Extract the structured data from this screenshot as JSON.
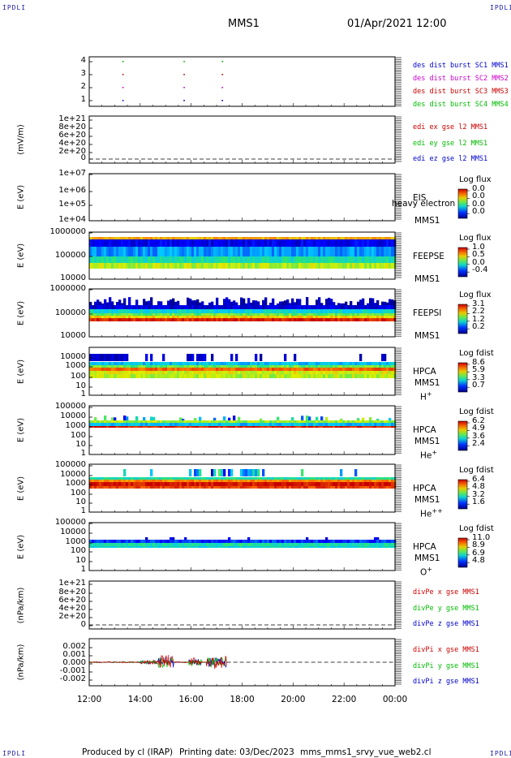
{
  "header": {
    "corner_text": "IPDLI",
    "spacecraft": "MMS1",
    "datetime": "01/Apr/2021 12:00"
  },
  "footer": {
    "produced_by": "Produced by cl (IRAP)",
    "printing_date": "Printing date: 03/Dec/2023",
    "script": "mms_mms1_srvy_vue_web2.cl"
  },
  "x_axis": {
    "ticks": [
      "12:00",
      "14:00",
      "16:00",
      "18:00",
      "20:00",
      "22:00",
      "00:00"
    ]
  },
  "chart_data": [
    {
      "type": "scatter",
      "panel": "des-dist-burst",
      "ylabel": "",
      "yticks": [
        "4",
        "3",
        "2",
        "1"
      ],
      "legend": [
        "des dist burst SC1 MMS1",
        "des dist burst SC2 MMS2",
        "des dist burst SC3 MMS3",
        "des dist burst SC4 MMS4"
      ],
      "legend_colors": [
        "#0000cc",
        "#cc00cc",
        "#cc0000",
        "#00bb00"
      ],
      "x_hours": [
        13.3,
        15.7,
        17.2
      ],
      "levels": [
        4,
        3,
        2,
        1
      ]
    },
    {
      "type": "line",
      "panel": "edi-e-gse",
      "ylabel": "(mV/m)",
      "yticks": [
        "1e+21",
        "8e+20",
        "6e+20",
        "4e+20",
        "2e+20",
        "0"
      ],
      "legend": [
        "edi ex gse l2 MMS1",
        "edi ey gse l2 MMS1",
        "edi ez gse l2 MMS1"
      ],
      "legend_colors": [
        "#cc0000",
        "#00bb00",
        "#0000cc"
      ]
    },
    {
      "type": "heatmap",
      "panel": "eis",
      "ylabel": "E (eV)",
      "yticks": [
        "1e+07",
        "1e+06",
        "1e+05",
        "1e+04"
      ],
      "instrument": "EIS",
      "spacecraft": "MMS1",
      "overlay_text": "heavy electron to",
      "colorbar_title": "Log flux",
      "colorbar_ticks": [
        "0.0",
        "0.0",
        "0.0",
        "0.0"
      ]
    },
    {
      "type": "heatmap",
      "panel": "feepse",
      "ylabel": "E (eV)",
      "yticks": [
        "1000000",
        "100000",
        "10000"
      ],
      "instrument": "FEEPSE",
      "spacecraft": "MMS1",
      "colorbar_title": "Log flux",
      "colorbar_ticks": [
        "1.0",
        "0.5",
        "0.0",
        "-0.4"
      ],
      "data_end_hour": 24
    },
    {
      "type": "heatmap",
      "panel": "feepsi",
      "ylabel": "E (eV)",
      "yticks": [
        "1000000",
        "100000",
        "10000"
      ],
      "instrument": "FEEPSI",
      "spacecraft": "MMS1",
      "colorbar_title": "Log flux",
      "colorbar_ticks": [
        "3.1",
        "2.2",
        "1.2",
        "0.2"
      ],
      "data_end_hour": 24
    },
    {
      "type": "heatmap",
      "panel": "hpca-h",
      "ylabel": "E (eV)",
      "yticks": [
        "10000",
        "1000",
        "100",
        "10",
        "1"
      ],
      "instrument": "HPCA",
      "spacecraft": "MMS1",
      "species": "H",
      "species_sup": "+",
      "colorbar_title": "Log fdist",
      "colorbar_ticks": [
        "8.6",
        "5.9",
        "3.3",
        "0.7"
      ],
      "data_end_hour": 24
    },
    {
      "type": "heatmap",
      "panel": "hpca-he",
      "ylabel": "E (eV)",
      "yticks": [
        "100000",
        "10000",
        "1000",
        "100",
        "10",
        "1"
      ],
      "instrument": "HPCA",
      "spacecraft": "MMS1",
      "species": "He",
      "species_sup": "+",
      "colorbar_title": "Log fdist",
      "colorbar_ticks": [
        "6.2",
        "4.9",
        "3.6",
        "2.4"
      ],
      "data_end_hour": 24
    },
    {
      "type": "heatmap",
      "panel": "hpca-hepp",
      "ylabel": "E (eV)",
      "yticks": [
        "100000",
        "10000",
        "1000",
        "100",
        "10",
        "1"
      ],
      "instrument": "HPCA",
      "spacecraft": "MMS1",
      "species": "He",
      "species_sup": "++",
      "colorbar_title": "Log fdist",
      "colorbar_ticks": [
        "6.4",
        "4.8",
        "3.2",
        "1.6"
      ],
      "data_end_hour": 24
    },
    {
      "type": "heatmap",
      "panel": "hpca-o",
      "ylabel": "E (eV)",
      "yticks": [
        "100000",
        "10000",
        "1000",
        "100",
        "10",
        "1"
      ],
      "instrument": "HPCA",
      "spacecraft": "MMS1",
      "species": "O",
      "species_sup": "+",
      "colorbar_title": "Log fdist",
      "colorbar_ticks": [
        "11.0",
        "8.9",
        "6.9",
        "4.8"
      ],
      "data_end_hour": 24
    },
    {
      "type": "line",
      "panel": "divpe",
      "ylabel": "(nPa/km)",
      "yticks": [
        "1e+21",
        "8e+20",
        "6e+20",
        "4e+20",
        "2e+20",
        "0"
      ],
      "legend": [
        "divPe x gse MMS1",
        "divPe y gse MMS1",
        "divPe z gse MMS1"
      ],
      "legend_colors": [
        "#cc0000",
        "#00bb00",
        "#0000cc"
      ]
    },
    {
      "type": "line",
      "panel": "divpi",
      "ylabel": "(nPa/km)",
      "yticks": [
        "0.002",
        "0.001",
        "0.000",
        "-0.001",
        "-0.002"
      ],
      "legend": [
        "divPi x gse MMS1",
        "divPi y gse MMS1",
        "divPi z gse MMS1"
      ],
      "legend_colors": [
        "#cc0000",
        "#00bb00",
        "#0000cc"
      ],
      "ylim": [
        -0.0025,
        0.0025
      ],
      "data_end_hour": 17.4
    }
  ]
}
